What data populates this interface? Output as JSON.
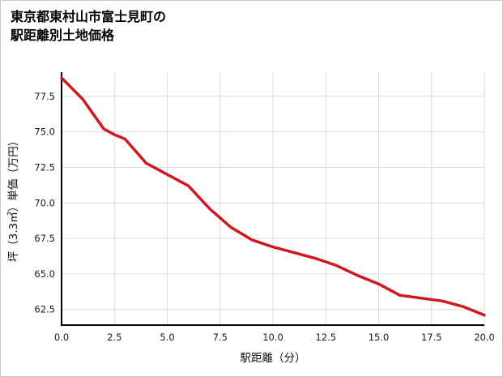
{
  "page": {
    "background": "#ffffff",
    "border_color": "#c8c8c8"
  },
  "title": {
    "line1": "東京都東村山市富士見町の",
    "line2": "駅距離別土地価格"
  },
  "chart_data": {
    "type": "line",
    "title": "東京都東村山市富士見町の駅距離別土地価格",
    "xlabel": "駅距離（分）",
    "ylabel": "坪（3.3㎡）単価（万円）",
    "x": [
      0,
      1,
      2,
      2.5,
      3,
      4,
      5,
      6,
      7,
      8,
      9,
      10,
      11,
      12,
      13,
      14,
      15,
      16,
      17,
      18,
      19,
      20
    ],
    "y": [
      78.8,
      77.3,
      75.2,
      74.8,
      74.5,
      72.8,
      72.0,
      71.2,
      69.6,
      68.3,
      67.4,
      66.9,
      66.5,
      66.1,
      65.6,
      64.9,
      64.3,
      63.5,
      63.3,
      63.1,
      62.7,
      62.1
    ],
    "xlim": [
      0,
      20
    ],
    "ylim": [
      61.4,
      79.2
    ],
    "x_tick_values": [
      0,
      2.5,
      5,
      7.5,
      10,
      12.5,
      15,
      17.5,
      20
    ],
    "x_tick_labels": [
      "0.0",
      "2.5",
      "5.0",
      "7.5",
      "10.0",
      "12.5",
      "15.0",
      "17.5",
      "20.0"
    ],
    "y_tick_values": [
      62.5,
      65,
      67.5,
      70,
      72.5,
      75,
      77.5
    ],
    "y_tick_labels": [
      "62.5",
      "65.0",
      "67.5",
      "70.0",
      "72.5",
      "75.0",
      "77.5"
    ],
    "line_color": "#cc1a1f",
    "grid": true,
    "grid_color": "#dcdcdc",
    "axis_color": "#000000",
    "legend": "none"
  }
}
